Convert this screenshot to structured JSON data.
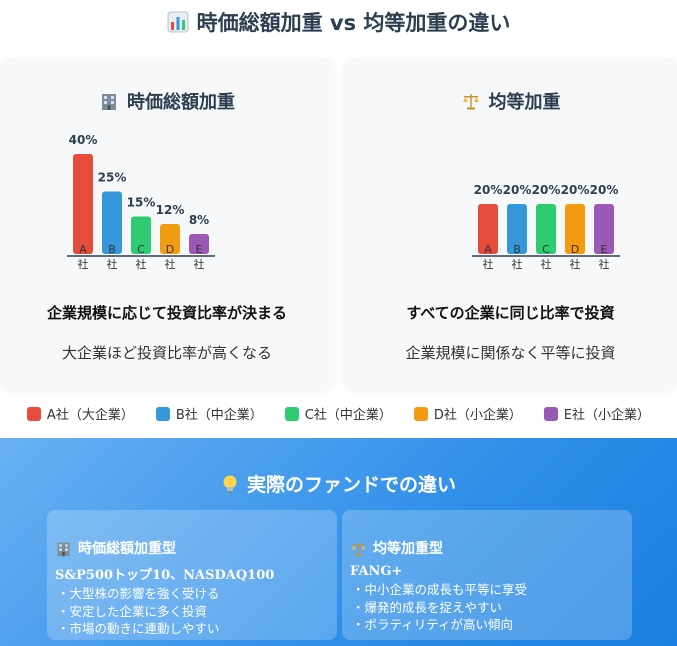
{
  "title": "時価総額加重 vs 均等加重の違い",
  "title_icon": "bar-chart-icon",
  "left_panel": {
    "icon": "building-icon",
    "title": "時価総額加重",
    "heading": "企業規模に応じて投資比率が決まる",
    "sub": "大企業ほど投資比率が高くなる"
  },
  "right_panel": {
    "icon": "balance-scale-icon",
    "title": "均等加重",
    "heading": "すべての企業に同じ比率で投資",
    "sub": "企業規模に関係なく平等に投資"
  },
  "chart_data": [
    {
      "type": "bar",
      "title": "",
      "categories": [
        "A社",
        "B社",
        "C社",
        "D社",
        "E社"
      ],
      "values": [
        40,
        25,
        15,
        12,
        8
      ],
      "value_labels": [
        "40%",
        "25%",
        "15%",
        "12%",
        "8%"
      ],
      "colors": [
        "#e74c3c",
        "#3498db",
        "#2ecc71",
        "#f39c12",
        "#9b59b6"
      ],
      "ylim": [
        0,
        40
      ]
    },
    {
      "type": "bar",
      "title": "",
      "categories": [
        "A社",
        "B社",
        "C社",
        "D社",
        "E社"
      ],
      "values": [
        20,
        20,
        20,
        20,
        20
      ],
      "value_labels": [
        "20%",
        "20%",
        "20%",
        "20%",
        "20%"
      ],
      "colors": [
        "#e74c3c",
        "#3498db",
        "#2ecc71",
        "#f39c12",
        "#9b59b6"
      ],
      "ylim": [
        0,
        40
      ]
    }
  ],
  "legend": [
    {
      "label": "A社（大企業）",
      "color": "#e74c3c"
    },
    {
      "label": "B社（中企業）",
      "color": "#3498db"
    },
    {
      "label": "C社（中企業）",
      "color": "#2ecc71"
    },
    {
      "label": "D社（小企業）",
      "color": "#f39c12"
    },
    {
      "label": "E社（小企業）",
      "color": "#9b59b6"
    }
  ],
  "bottom": {
    "icon": "lightbulb-icon",
    "title": "実際のファンドでの違い",
    "cards": [
      {
        "icon": "building-icon",
        "title": "時価総額加重型",
        "sub": "S&P500トップ10、NASDAQ100",
        "items": [
          "・大型株の影響を強く受ける",
          "・安定した企業に多く投資",
          "・市場の動きに連動しやすい"
        ]
      },
      {
        "icon": "balance-scale-icon",
        "title": "均等加重型",
        "sub": "FANG+",
        "items": [
          "・中小企業の成長も平等に享受",
          "・爆発的成長を捉えやすい",
          "・ボラティリティが高い傾向"
        ]
      }
    ]
  }
}
